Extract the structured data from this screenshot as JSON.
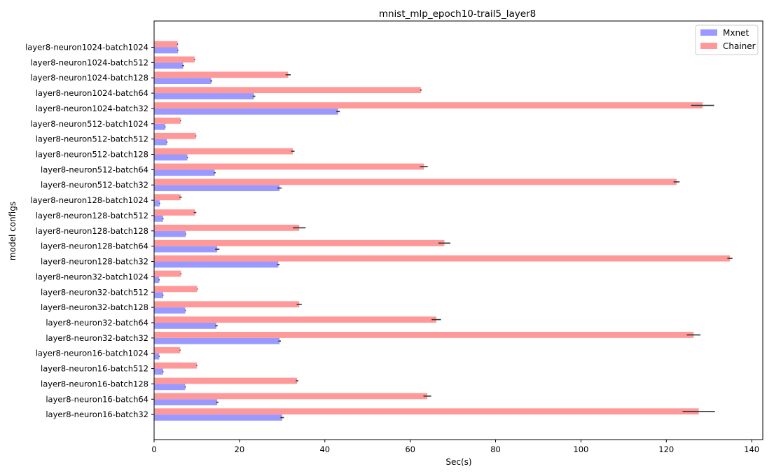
{
  "chart_data": {
    "type": "bar",
    "orientation": "horizontal",
    "title": "mnist_mlp_epoch10-trail5_layer8",
    "xlabel": "Sec(s)",
    "ylabel": "model configs",
    "xlim": [
      0,
      142
    ],
    "xticks": [
      0,
      20,
      40,
      60,
      80,
      100,
      120,
      140
    ],
    "legend_position": "top-right",
    "categories": [
      "layer8-neuron1024-batch1024",
      "layer8-neuron1024-batch512",
      "layer8-neuron1024-batch128",
      "layer8-neuron1024-batch64",
      "layer8-neuron1024-batch32",
      "layer8-neuron512-batch1024",
      "layer8-neuron512-batch512",
      "layer8-neuron512-batch128",
      "layer8-neuron512-batch64",
      "layer8-neuron512-batch32",
      "layer8-neuron128-batch1024",
      "layer8-neuron128-batch512",
      "layer8-neuron128-batch128",
      "layer8-neuron128-batch64",
      "layer8-neuron128-batch32",
      "layer8-neuron32-batch1024",
      "layer8-neuron32-batch512",
      "layer8-neuron32-batch128",
      "layer8-neuron32-batch64",
      "layer8-neuron32-batch32",
      "layer8-neuron16-batch1024",
      "layer8-neuron16-batch512",
      "layer8-neuron16-batch128",
      "layer8-neuron16-batch64",
      "layer8-neuron16-batch32"
    ],
    "series": [
      {
        "name": "Mxnet",
        "color": "#9999ff",
        "values": [
          5.6,
          6.8,
          13.4,
          23.4,
          43.1,
          2.6,
          3.0,
          7.8,
          14.2,
          29.4,
          1.3,
          2.1,
          7.4,
          14.8,
          29.1,
          1.2,
          2.1,
          7.3,
          14.6,
          29.4,
          1.2,
          2.1,
          7.3,
          14.8,
          30.0
        ],
        "errors": [
          0.1,
          0.2,
          0.2,
          0.3,
          0.4,
          0.1,
          0.1,
          0.1,
          0.2,
          0.5,
          0.1,
          0.1,
          0.1,
          0.5,
          0.3,
          0.1,
          0.1,
          0.1,
          0.3,
          0.3,
          0.1,
          0.1,
          0.1,
          0.3,
          0.4
        ]
      },
      {
        "name": "Chainer",
        "color": "#ff9999",
        "values": [
          5.5,
          9.5,
          31.4,
          62.5,
          128.5,
          6.2,
          9.8,
          32.5,
          63.2,
          122.4,
          6.2,
          9.6,
          34.0,
          68.0,
          134.9,
          6.3,
          10.1,
          34.0,
          66.1,
          126.4,
          6.1,
          10.0,
          33.5,
          64.0,
          127.6
        ],
        "errors": [
          0.1,
          0.1,
          0.6,
          0.2,
          2.7,
          0.1,
          0.1,
          0.4,
          0.9,
          0.7,
          0.3,
          0.3,
          1.5,
          1.4,
          0.6,
          0.1,
          0.1,
          0.6,
          1.1,
          1.6,
          0.1,
          0.1,
          0.3,
          0.9,
          3.8
        ]
      }
    ]
  }
}
